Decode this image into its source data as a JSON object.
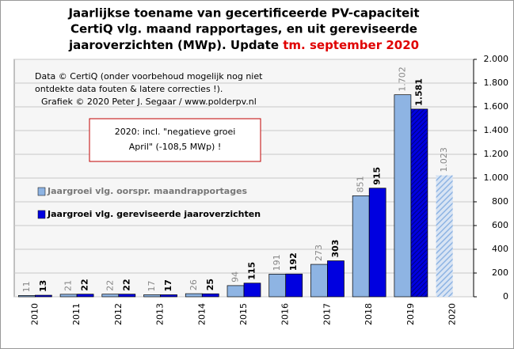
{
  "chart_data": {
    "type": "bar",
    "title_lines": [
      "Jaarlijkse toename van gecertificeerde PV-capaciteit",
      "CertiQ vlg. maand rapportages, en uit gereviseerde",
      "jaaroverzichten (MWp). Update "
    ],
    "title_highlight": "tm. september 2020",
    "annotations": [
      "Data © CertiQ (onder voorbehoud mogelijk nog niet",
      "ontdekte data fouten & latere correcties !).",
      "Grafiek © 2020 Peter J. Segaar / www.polderpv.nl"
    ],
    "note_lines": [
      "2020: incl. \"negatieve groei",
      "April\" (-108,5 MWp) !"
    ],
    "categories": [
      "2010",
      "2011",
      "2012",
      "2013",
      "2014",
      "2015",
      "2016",
      "2017",
      "2018",
      "2019",
      "2020"
    ],
    "series": [
      {
        "name": "Jaargroei vlg. oorspr. maandrapportages",
        "color": "#8eb4e3",
        "values": [
          11,
          21,
          22,
          17,
          26,
          94,
          191,
          273,
          851,
          1702,
          1023
        ],
        "value_labels": [
          "11",
          "21",
          "22",
          "17",
          "26",
          "94",
          "191",
          "273",
          "851",
          "1.702",
          "1.023"
        ],
        "hatched": [
          10
        ]
      },
      {
        "name": "Jaargroei vlg. gereviseerde jaaroverzichten",
        "color": "#0000e0",
        "values": [
          13,
          22,
          22,
          17,
          25,
          115,
          192,
          303,
          915,
          1581,
          null
        ],
        "value_labels": [
          "13",
          "22",
          "22",
          "17",
          "25",
          "115",
          "192",
          "303",
          "915",
          "1.581",
          null
        ],
        "hatched": [
          9
        ]
      }
    ],
    "ylim": [
      0,
      2000
    ],
    "yticks": [
      0,
      200,
      400,
      600,
      800,
      {
        "value": 1000,
        "label": "1.000"
      },
      {
        "value": 1200,
        "label": "1.200"
      },
      {
        "value": 1400,
        "label": "1.400"
      },
      {
        "value": 1600,
        "label": "1.600"
      },
      {
        "value": 1800,
        "label": "1.800"
      },
      {
        "value": 2000,
        "label": "2.000"
      }
    ],
    "grid": true
  }
}
